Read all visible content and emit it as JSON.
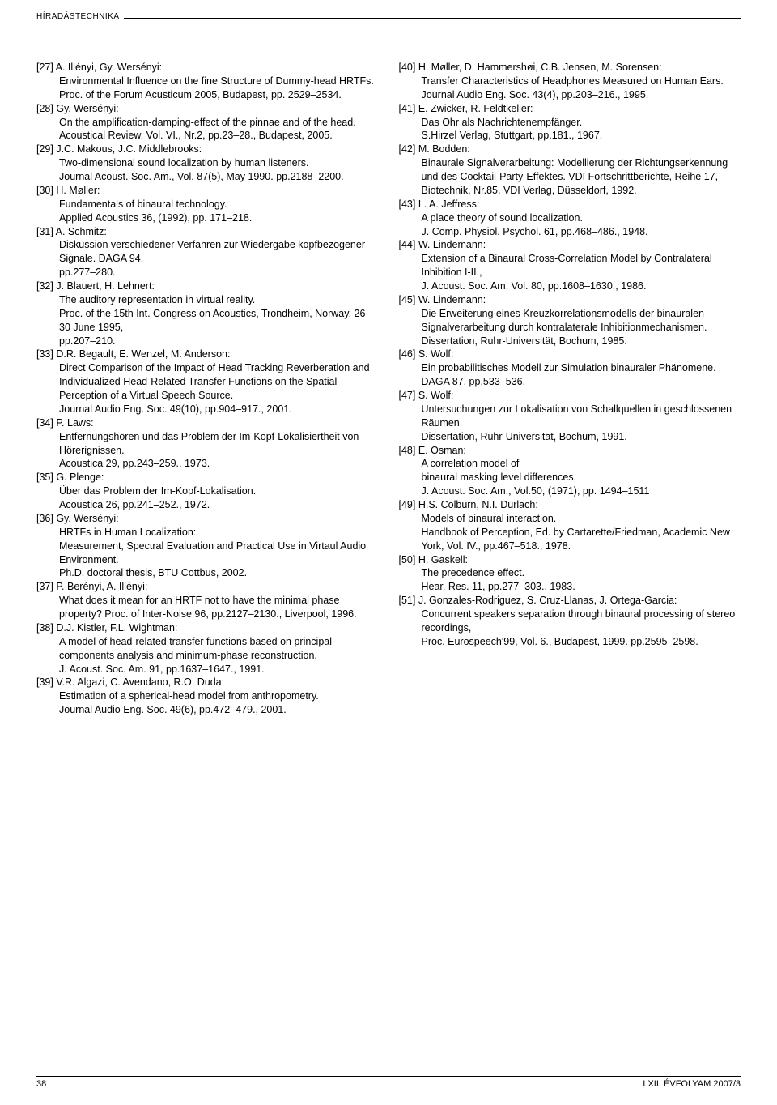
{
  "header": {
    "section": "HÍRADÁSTECHNIKA"
  },
  "left_refs": [
    "[27] A. Illényi, Gy. Wersényi:\nEnvironmental Influence on the fine Structure of Dummy-head HRTFs.\nProc. of the Forum Acusticum 2005, Budapest, pp. 2529–2534.",
    "[28] Gy. Wersényi:\nOn the amplification-damping-effect of the pinnae and of the head.\nAcoustical Review, Vol. VI., Nr.2, pp.23–28., Budapest, 2005.",
    "[29] J.C. Makous, J.C. Middlebrooks:\nTwo-dimensional sound localization by human listeners.\nJournal Acoust. Soc. Am., Vol. 87(5), May 1990. pp.2188–2200.",
    "[30] H. Møller:\nFundamentals of binaural technology.\nApplied Acoustics 36, (1992), pp. 171–218.",
    "[31] A. Schmitz:\nDiskussion verschiedener Verfahren zur Wiedergabe kopfbezogener Signale. DAGA 94,\npp.277–280.",
    "[32] J. Blauert, H. Lehnert:\nThe auditory representation in virtual reality.\nProc. of the 15th Int. Congress on Acoustics, Trondheim, Norway, 26-30 June 1995,\npp.207–210.",
    "[33] D.R. Begault, E. Wenzel, M. Anderson:\nDirect Comparison of the Impact of Head Tracking Reverberation and Individualized Head-Related Transfer Functions on the Spatial Perception of a Virtual Speech Source.\nJournal Audio Eng. Soc. 49(10), pp.904–917., 2001.",
    "[34] P. Laws:\nEntfernungshören und das Problem der Im-Kopf-Lokalisiertheit von Hörerignissen.\nAcoustica 29, pp.243–259., 1973.",
    "[35] G. Plenge:\nÜber das Problem der Im-Kopf-Lokalisation.\nAcoustica 26, pp.241–252., 1972.",
    "[36] Gy. Wersényi:\nHRTFs in Human Localization:\nMeasurement, Spectral Evaluation and Practical Use in Virtaul Audio Environment.\nPh.D. doctoral thesis, BTU Cottbus, 2002.",
    "[37] P. Berényi, A. Illényi:\nWhat does it mean for an HRTF not to have the minimal phase property? Proc. of Inter-Noise 96, pp.2127–2130., Liverpool, 1996.",
    "[38] D.J. Kistler, F.L. Wightman:\nA model of head-related transfer functions based on principal components analysis and minimum-phase reconstruction.\nJ. Acoust. Soc. Am. 91, pp.1637–1647., 1991.",
    "[39] V.R. Algazi, C. Avendano, R.O. Duda:\nEstimation of a spherical-head model from anthropometry.\nJournal Audio Eng. Soc. 49(6), pp.472–479., 2001."
  ],
  "right_refs": [
    "[40] H. Møller, D. Hammershøi, C.B. Jensen, M. Sorensen:\nTransfer Characteristics of Headphones Measured on Human Ears.\nJournal Audio Eng. Soc. 43(4), pp.203–216., 1995.",
    "[41] E. Zwicker, R. Feldtkeller:\nDas Ohr als Nachrichtenempfänger.\nS.Hirzel Verlag, Stuttgart, pp.181., 1967.",
    "[42] M. Bodden:\nBinaurale Signalverarbeitung: Modellierung der Richtungserkennung und des Cocktail-Party-Effektes. VDI Fortschrittberichte, Reihe 17, Biotechnik, Nr.85, VDI Verlag, Düsseldorf, 1992.",
    "[43] L. A. Jeffress:\nA place theory of sound localization.\nJ. Comp. Physiol. Psychol. 61, pp.468–486., 1948.",
    "[44] W. Lindemann:\nExtension of a Binaural Cross-Correlation Model by Contralateral Inhibition I-II.,\nJ. Acoust. Soc. Am, Vol. 80, pp.1608–1630., 1986.",
    "[45] W. Lindemann:\nDie Erweiterung eines Kreuzkorrelationsmodells der binauralen Signalverarbeitung durch kontralaterale Inhibitionmechanismen.\nDissertation, Ruhr-Universität, Bochum, 1985.",
    "[46] S. Wolf:\nEin probabilitisches Modell zur Simulation binauraler Phänomene. DAGA 87, pp.533–536.",
    "[47] S. Wolf:\nUntersuchungen zur Lokalisation von Schallquellen in geschlossenen Räumen.\nDissertation, Ruhr-Universität, Bochum, 1991.",
    "[48] E. Osman:\nA correlation model of\nbinaural masking level differences.\nJ. Acoust. Soc. Am., Vol.50, (1971), pp. 1494–1511",
    "[49] H.S. Colburn, N.I. Durlach:\nModels of binaural interaction.\nHandbook of Perception, Ed. by Cartarette/Friedman, Academic New York, Vol. IV., pp.467–518., 1978.",
    "[50] H. Gaskell:\nThe precedence effect.\nHear. Res. 11, pp.277–303., 1983.",
    "[51] J. Gonzales-Rodriguez, S. Cruz-Llanas, J. Ortega-Garcia:\nConcurrent speakers separation through binaural processing of stereo recordings,\nProc. Eurospeech'99, Vol. 6., Budapest, 1999. pp.2595–2598."
  ],
  "footer": {
    "page": "38",
    "issue": "LXII. ÉVFOLYAM 2007/3"
  }
}
